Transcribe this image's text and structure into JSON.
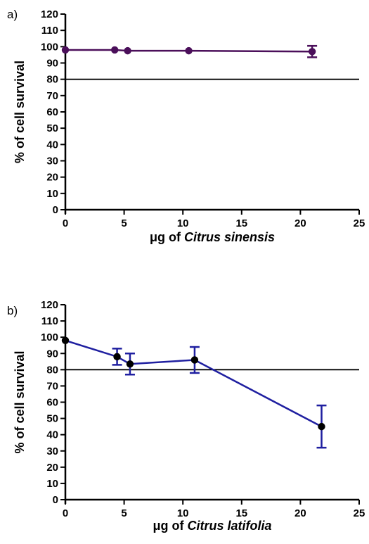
{
  "chart_data": [
    {
      "type": "line",
      "panel_label": "a)",
      "xlabel_prefix": "μg of ",
      "xlabel_italic": "Citrus sinensis",
      "ylabel": "% of cell survival",
      "xlim": [
        0,
        25
      ],
      "ylim": [
        0,
        120
      ],
      "xticks": [
        0,
        5,
        10,
        15,
        20,
        25
      ],
      "yticks": [
        0,
        10,
        20,
        30,
        40,
        50,
        60,
        70,
        80,
        90,
        100,
        110,
        120
      ],
      "reference_line": 80,
      "color": "#4b0f5a",
      "series": [
        {
          "x": [
            0,
            4.2,
            5.3,
            10.5,
            21
          ],
          "y": [
            98,
            98,
            97.5,
            97.5,
            97
          ],
          "error": [
            0,
            0,
            0,
            0,
            3.5
          ]
        }
      ]
    },
    {
      "type": "line",
      "panel_label": "b)",
      "xlabel_prefix": "μg of ",
      "xlabel_italic": "Citrus latifolia",
      "ylabel": "% of cell survival",
      "xlim": [
        0,
        25
      ],
      "ylim": [
        0,
        120
      ],
      "xticks": [
        0,
        5,
        10,
        15,
        20,
        25
      ],
      "yticks": [
        0,
        10,
        20,
        30,
        40,
        50,
        60,
        70,
        80,
        90,
        100,
        110,
        120
      ],
      "reference_line": 80,
      "color": "#1f1fa0",
      "series": [
        {
          "x": [
            0,
            4.4,
            5.5,
            11,
            21.8
          ],
          "y": [
            98,
            88,
            83.5,
            86,
            45
          ],
          "error": [
            0,
            5,
            6.5,
            8,
            13
          ]
        }
      ]
    }
  ]
}
